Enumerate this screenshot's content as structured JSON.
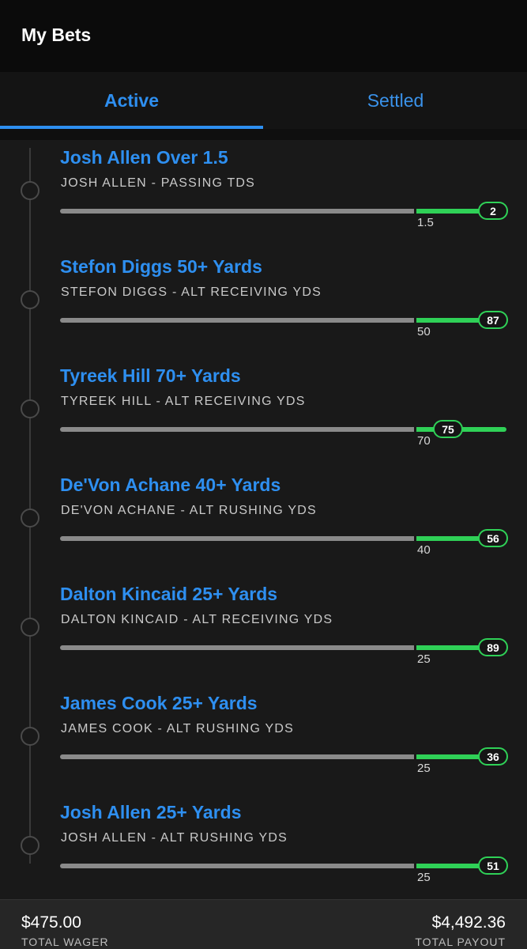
{
  "header": {
    "title": "My Bets"
  },
  "tabs": [
    {
      "label": "Active",
      "selected": true
    },
    {
      "label": "Settled",
      "selected": false
    }
  ],
  "bets": [
    {
      "title": "Josh Allen Over 1.5",
      "subtitle": "JOSH ALLEN - PASSING TDS",
      "line": "1.5",
      "current": "2"
    },
    {
      "title": "Stefon Diggs 50+ Yards",
      "subtitle": "STEFON DIGGS - ALT RECEIVING YDS",
      "line": "50",
      "current": "87"
    },
    {
      "title": "Tyreek Hill 70+ Yards",
      "subtitle": "TYREEK HILL - ALT RECEIVING YDS",
      "line": "70",
      "current": "75"
    },
    {
      "title": "De'Von Achane 40+ Yards",
      "subtitle": "DE'VON ACHANE - ALT RUSHING YDS",
      "line": "40",
      "current": "56"
    },
    {
      "title": "Dalton Kincaid 25+ Yards",
      "subtitle": "DALTON KINCAID - ALT RECEIVING YDS",
      "line": "25",
      "current": "89"
    },
    {
      "title": "James Cook 25+ Yards",
      "subtitle": "JAMES COOK - ALT RUSHING YDS",
      "line": "25",
      "current": "36"
    },
    {
      "title": "Josh Allen 25+ Yards",
      "subtitle": "JOSH ALLEN - ALT RUSHING YDS",
      "line": "25",
      "current": "51"
    }
  ],
  "footer": {
    "total_wager": "$475.00",
    "total_wager_label": "TOTAL WAGER",
    "total_payout": "$4,492.36",
    "total_payout_label": "TOTAL PAYOUT"
  },
  "colors": {
    "accent": "#2e8ff0",
    "progress_green": "#2fd157",
    "track_gray": "#8a8a8a",
    "background": "#191919"
  }
}
